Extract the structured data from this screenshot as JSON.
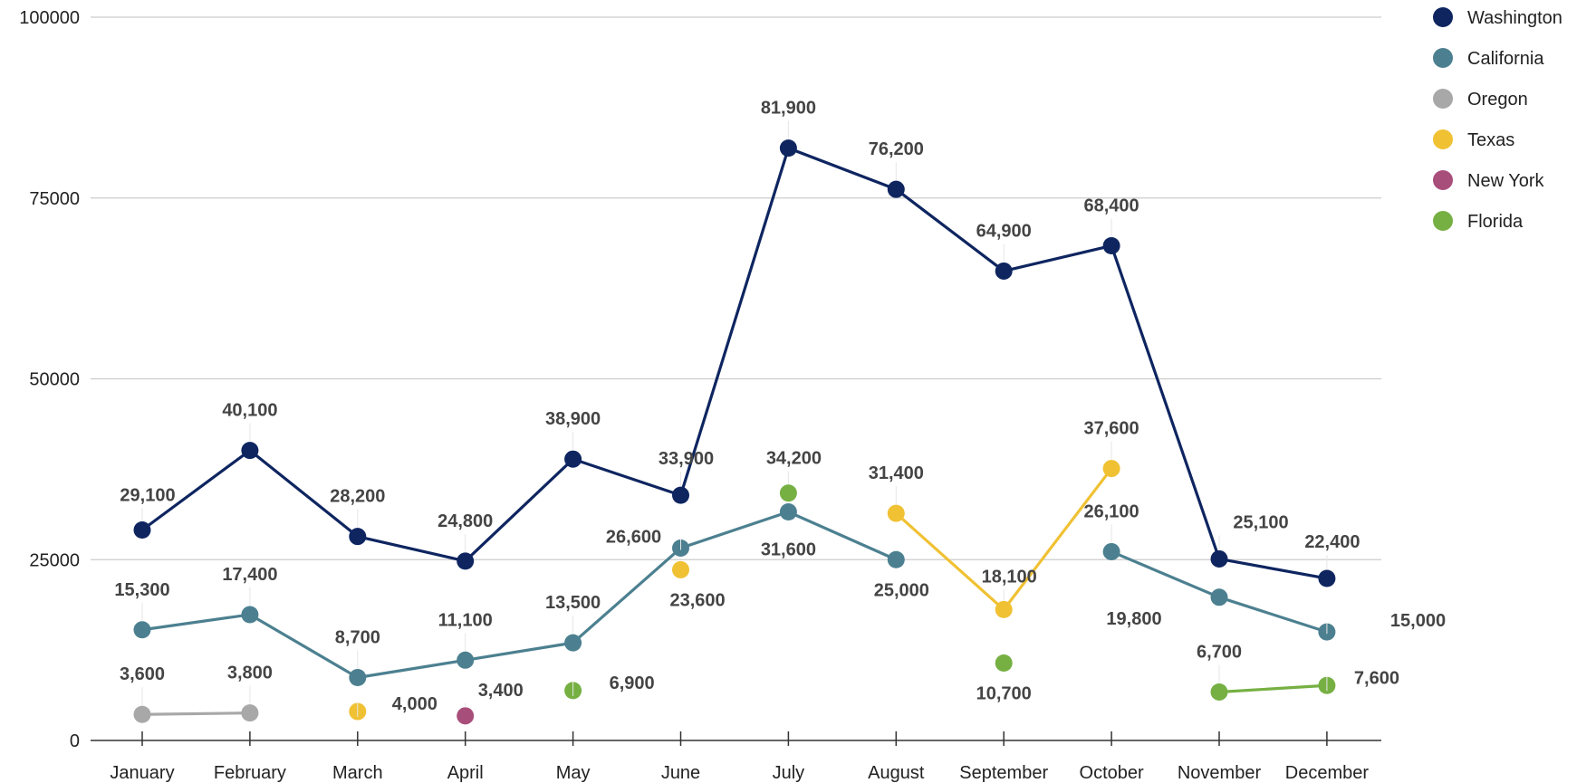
{
  "chart_data": {
    "type": "line",
    "title": "",
    "xlabel": "",
    "ylabel": "",
    "ylim": [
      0,
      100000
    ],
    "yticks": [
      0,
      25000,
      50000,
      75000,
      100000
    ],
    "ytick_labels": [
      "0",
      "25000",
      "50000",
      "75000",
      "100000"
    ],
    "grid": true,
    "legend_position": "top-right",
    "categories": [
      "January",
      "February",
      "March",
      "April",
      "May",
      "June",
      "July",
      "August",
      "September",
      "October",
      "November",
      "December"
    ],
    "series": [
      {
        "name": "Washington",
        "color": "#0e2560",
        "values": [
          29100,
          40100,
          28200,
          24800,
          38900,
          33900,
          81900,
          76200,
          64900,
          68400,
          25100,
          22400
        ],
        "labels": [
          "29,100",
          "40,100",
          "28,200",
          "24,800",
          "38,900",
          "33,900",
          "81,900",
          "76,200",
          "64,900",
          "68,400",
          "25,100",
          "22,400"
        ]
      },
      {
        "name": "California",
        "color": "#4c8090",
        "values": [
          15300,
          17400,
          8700,
          11100,
          13500,
          26600,
          31600,
          25000,
          null,
          26100,
          19800,
          15000
        ],
        "labels": [
          "15,300",
          "17,400",
          "8,700",
          "11,100",
          "13,500",
          "26,600",
          "31,600",
          "25,000",
          "",
          "26,100",
          "19,800",
          "15,000"
        ]
      },
      {
        "name": "Oregon",
        "color": "#a8a8a8",
        "values": [
          3600,
          3800,
          null,
          null,
          null,
          null,
          null,
          null,
          null,
          null,
          null,
          null
        ],
        "labels": [
          "3,600",
          "3,800",
          "",
          "",
          "",
          "",
          "",
          "",
          "",
          "",
          "",
          ""
        ]
      },
      {
        "name": "Texas",
        "color": "#f0c133",
        "values": [
          null,
          null,
          4000,
          null,
          null,
          23600,
          null,
          31400,
          18100,
          37600,
          null,
          null
        ],
        "labels": [
          "",
          "",
          "4,000",
          "",
          "",
          "23,600",
          "",
          "31,400",
          "18,100",
          "37,600",
          "",
          ""
        ]
      },
      {
        "name": "New York",
        "color": "#a84e7a",
        "values": [
          null,
          null,
          null,
          3400,
          null,
          null,
          null,
          null,
          null,
          null,
          null,
          null
        ],
        "labels": [
          "",
          "",
          "",
          "3,400",
          "",
          "",
          "",
          "",
          "",
          "",
          "",
          ""
        ]
      },
      {
        "name": "Florida",
        "color": "#76b043",
        "values": [
          null,
          null,
          null,
          null,
          6900,
          null,
          34200,
          null,
          10700,
          null,
          6700,
          7600
        ],
        "labels": [
          "",
          "",
          "",
          "",
          "6,900",
          "",
          "34,200",
          "",
          "10,700",
          "",
          "6,700",
          "7,600"
        ]
      }
    ]
  }
}
